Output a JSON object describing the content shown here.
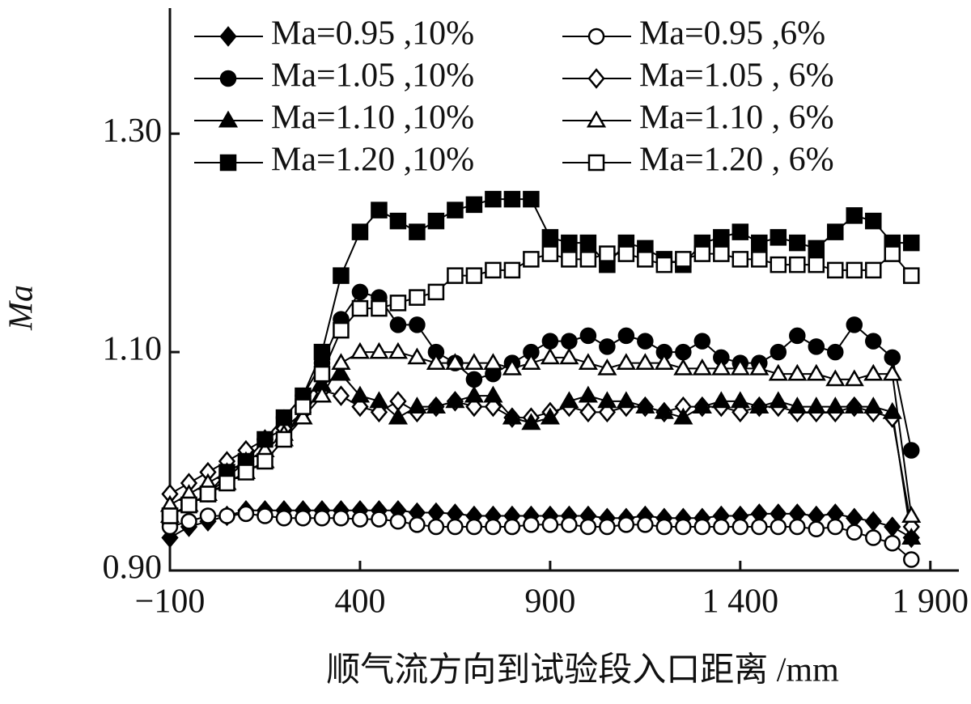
{
  "chart_data": {
    "type": "line",
    "xlabel": "顺气流方向到试验段入口距离 /mm",
    "ylabel": "Ma",
    "x": [
      -100,
      -50,
      0,
      50,
      100,
      150,
      200,
      250,
      300,
      350,
      400,
      450,
      500,
      550,
      600,
      650,
      700,
      750,
      800,
      850,
      900,
      950,
      1000,
      1050,
      1100,
      1150,
      1200,
      1250,
      1300,
      1350,
      1400,
      1450,
      1500,
      1550,
      1600,
      1650,
      1700,
      1750,
      1800,
      1850
    ],
    "xlim": [
      -100,
      1975
    ],
    "xticks": [
      {
        "value": -100,
        "label": "−100"
      },
      400,
      900,
      {
        "value": 1400,
        "label": "1 400"
      },
      {
        "value": 1900,
        "label": "1 900"
      }
    ],
    "ylim": [
      0.9,
      1.415
    ],
    "yticks": [
      {
        "value": 0.9,
        "label": "0.90"
      },
      {
        "value": 1.1,
        "label": "1.10"
      },
      {
        "value": 1.3,
        "label": "1.30"
      }
    ],
    "legend": "top-left",
    "series": [
      {
        "name": "Ma=0.95 ,10%",
        "color": "#000000",
        "marker": "diamond",
        "filled": true,
        "values": [
          0.93,
          0.94,
          0.945,
          0.95,
          0.955,
          0.955,
          0.955,
          0.955,
          0.955,
          0.955,
          0.955,
          0.955,
          0.955,
          0.953,
          0.953,
          0.952,
          0.95,
          0.95,
          0.95,
          0.95,
          0.95,
          0.95,
          0.95,
          0.948,
          0.948,
          0.95,
          0.948,
          0.948,
          0.948,
          0.95,
          0.95,
          0.952,
          0.952,
          0.952,
          0.95,
          0.952,
          0.948,
          0.945,
          0.94,
          0.93
        ]
      },
      {
        "name": "Ma=0.95 ,6%",
        "color": "#000000",
        "marker": "circle",
        "filled": false,
        "values": [
          0.94,
          0.945,
          0.95,
          0.95,
          0.952,
          0.95,
          0.948,
          0.948,
          0.948,
          0.948,
          0.947,
          0.947,
          0.945,
          0.942,
          0.94,
          0.94,
          0.94,
          0.94,
          0.94,
          0.942,
          0.942,
          0.942,
          0.94,
          0.94,
          0.942,
          0.942,
          0.94,
          0.94,
          0.94,
          0.94,
          0.94,
          0.94,
          0.94,
          0.94,
          0.938,
          0.94,
          0.935,
          0.93,
          0.925,
          0.91
        ]
      },
      {
        "name": "Ma=1.05 ,10%",
        "color": "#000000",
        "marker": "circle",
        "filled": true,
        "values": [
          0.95,
          0.96,
          0.97,
          0.985,
          1.0,
          1.02,
          1.04,
          1.06,
          1.09,
          1.13,
          1.155,
          1.15,
          1.125,
          1.125,
          1.1,
          1.09,
          1.075,
          1.08,
          1.09,
          1.1,
          1.11,
          1.11,
          1.115,
          1.105,
          1.115,
          1.11,
          1.1,
          1.1,
          1.11,
          1.095,
          1.09,
          1.09,
          1.1,
          1.115,
          1.105,
          1.1,
          1.125,
          1.11,
          1.095,
          1.01
        ]
      },
      {
        "name": "Ma=1.05 , 6%",
        "color": "#000000",
        "marker": "diamond",
        "filled": false,
        "values": [
          0.97,
          0.98,
          0.99,
          1.0,
          1.01,
          1.02,
          1.03,
          1.045,
          1.065,
          1.06,
          1.05,
          1.045,
          1.055,
          1.045,
          1.05,
          1.055,
          1.05,
          1.05,
          1.04,
          1.04,
          1.045,
          1.05,
          1.045,
          1.045,
          1.05,
          1.05,
          1.045,
          1.05,
          1.05,
          1.05,
          1.045,
          1.05,
          1.05,
          1.045,
          1.045,
          1.045,
          1.05,
          1.045,
          1.04,
          0.94
        ]
      },
      {
        "name": "Ma=1.10 ,10%",
        "color": "#000000",
        "marker": "triangle",
        "filled": true,
        "values": [
          0.95,
          0.96,
          0.97,
          0.98,
          0.99,
          1.0,
          1.02,
          1.04,
          1.07,
          1.08,
          1.06,
          1.055,
          1.04,
          1.05,
          1.05,
          1.055,
          1.06,
          1.06,
          1.04,
          1.035,
          1.04,
          1.055,
          1.06,
          1.055,
          1.055,
          1.05,
          1.045,
          1.04,
          1.05,
          1.055,
          1.055,
          1.05,
          1.055,
          1.05,
          1.05,
          1.05,
          1.05,
          1.05,
          1.045,
          0.93
        ]
      },
      {
        "name": "Ma=1.10 , 6%",
        "color": "#000000",
        "marker": "triangle",
        "filled": false,
        "values": [
          0.96,
          0.97,
          0.98,
          0.99,
          1.0,
          1.01,
          1.025,
          1.04,
          1.06,
          1.09,
          1.1,
          1.1,
          1.1,
          1.095,
          1.09,
          1.09,
          1.09,
          1.09,
          1.085,
          1.09,
          1.095,
          1.095,
          1.09,
          1.085,
          1.09,
          1.09,
          1.09,
          1.085,
          1.085,
          1.085,
          1.085,
          1.085,
          1.08,
          1.08,
          1.08,
          1.075,
          1.075,
          1.08,
          1.08,
          0.95
        ]
      },
      {
        "name": "Ma=1.20 ,10%",
        "color": "#000000",
        "marker": "square",
        "filled": true,
        "values": [
          0.95,
          0.96,
          0.97,
          0.99,
          1.0,
          1.02,
          1.04,
          1.06,
          1.1,
          1.17,
          1.21,
          1.23,
          1.22,
          1.21,
          1.22,
          1.23,
          1.235,
          1.24,
          1.24,
          1.24,
          1.205,
          1.2,
          1.2,
          1.18,
          1.2,
          1.195,
          1.185,
          1.18,
          1.2,
          1.205,
          1.21,
          1.2,
          1.205,
          1.2,
          1.195,
          1.21,
          1.225,
          1.22,
          1.2,
          1.2
        ]
      },
      {
        "name": "Ma=1.20 , 6%",
        "color": "#000000",
        "marker": "square",
        "filled": false,
        "values": [
          0.95,
          0.96,
          0.97,
          0.98,
          0.99,
          1.0,
          1.02,
          1.05,
          1.08,
          1.12,
          1.14,
          1.14,
          1.145,
          1.15,
          1.155,
          1.17,
          1.17,
          1.175,
          1.175,
          1.185,
          1.19,
          1.185,
          1.185,
          1.19,
          1.19,
          1.185,
          1.18,
          1.185,
          1.19,
          1.19,
          1.185,
          1.185,
          1.18,
          1.18,
          1.18,
          1.175,
          1.175,
          1.175,
          1.19,
          1.17
        ]
      }
    ]
  }
}
